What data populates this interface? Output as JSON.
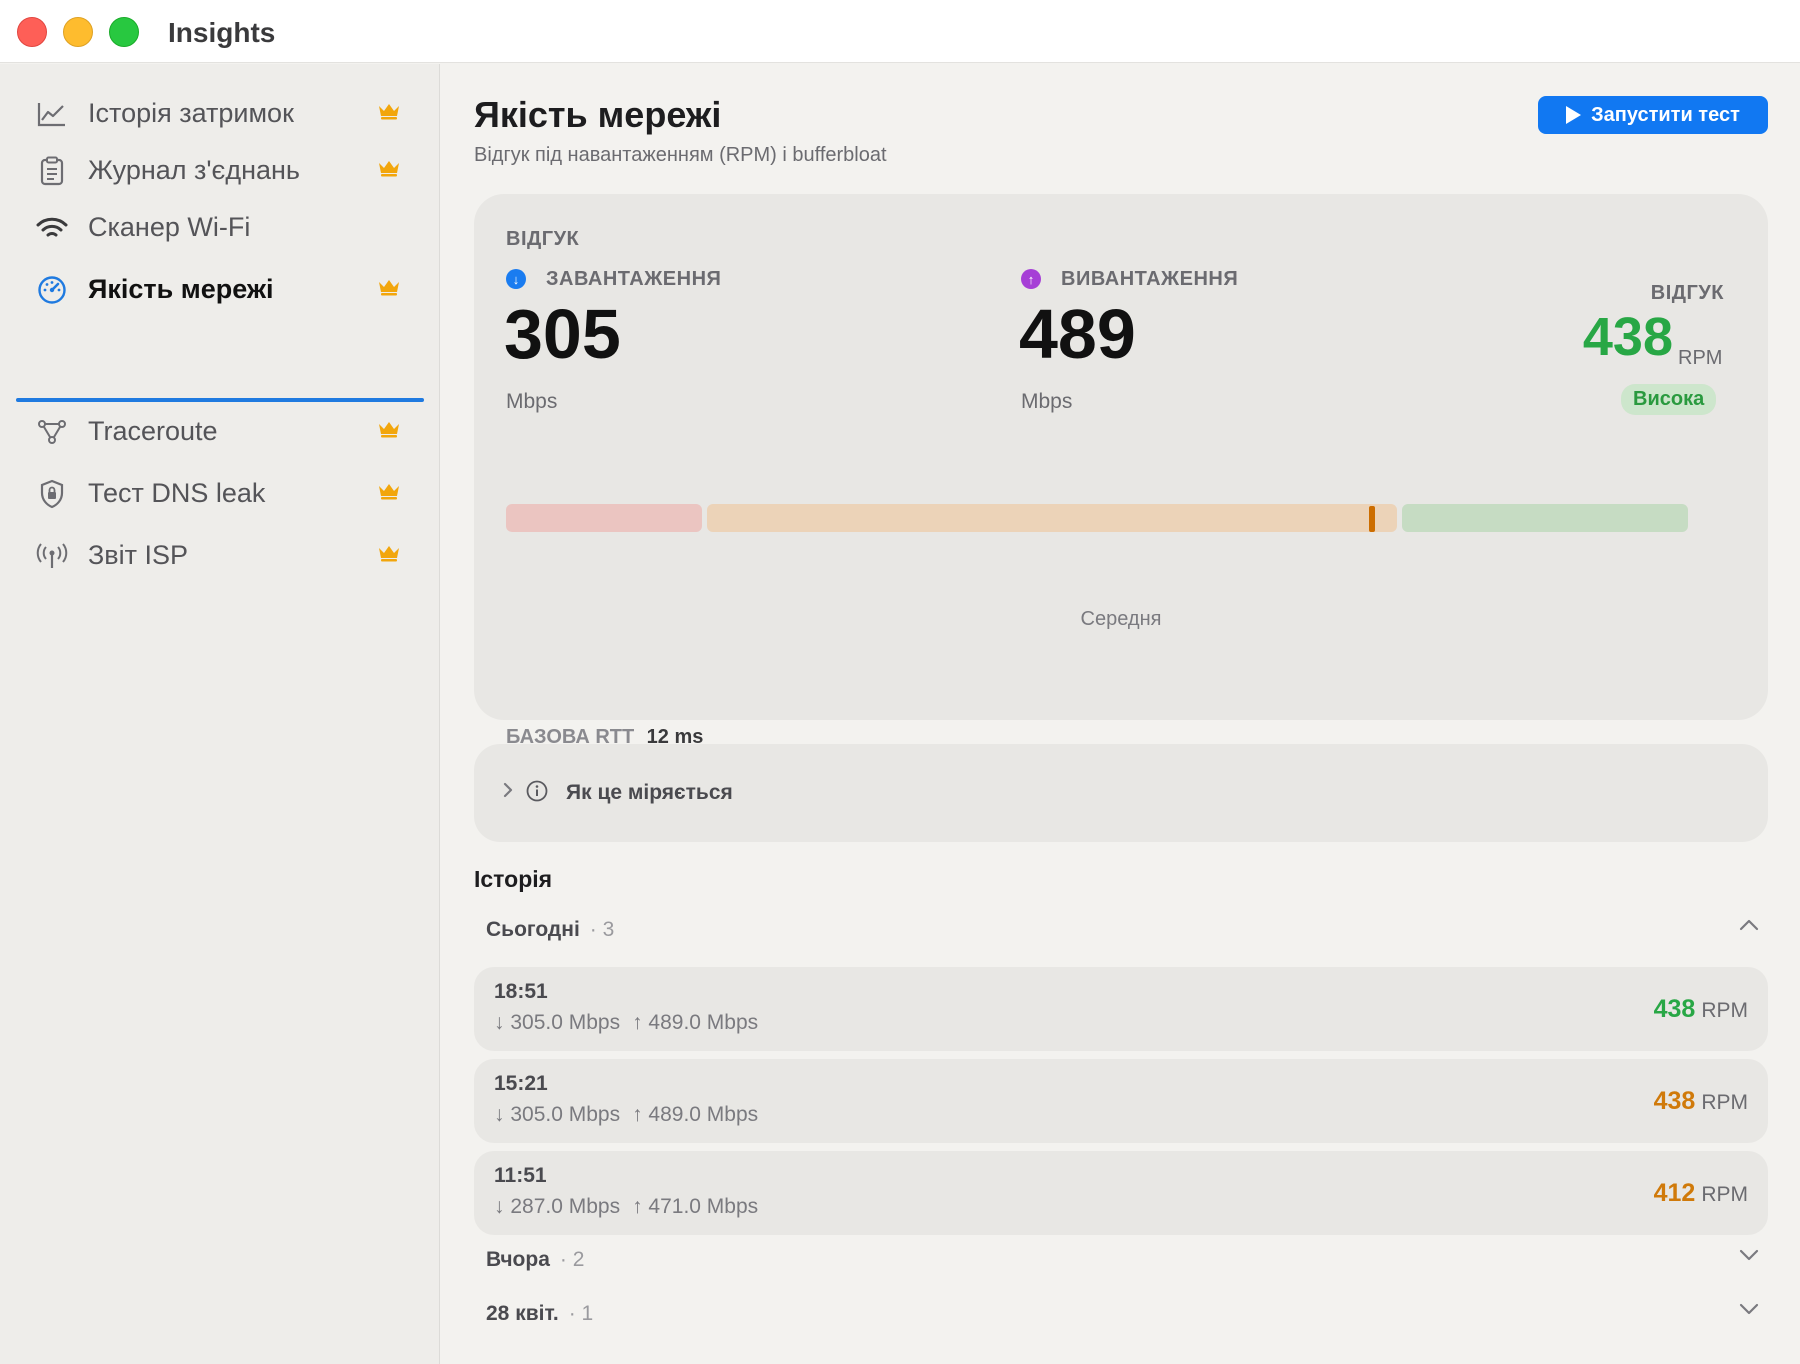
{
  "window": {
    "title": "Insights"
  },
  "sidebar": {
    "items": [
      {
        "label": "Історія затримок",
        "icon": "chart-line-icon",
        "premium": true,
        "active": false
      },
      {
        "label": "Журнал з'єднань",
        "icon": "clipboard-icon",
        "premium": true,
        "active": false
      },
      {
        "label": "Сканер Wi-Fi",
        "icon": "wifi-icon",
        "premium": false,
        "active": false
      },
      {
        "label": "Якість мережі",
        "icon": "gauge-icon",
        "premium": true,
        "active": true
      },
      {
        "label": "Traceroute",
        "icon": "route-icon",
        "premium": true,
        "active": false
      },
      {
        "label": "Тест DNS leak",
        "icon": "shield-icon",
        "premium": true,
        "active": false
      },
      {
        "label": "Звіт ISP",
        "icon": "antenna-icon",
        "premium": true,
        "active": false
      }
    ]
  },
  "header": {
    "title": "Якість мережі",
    "subtitle": "Відгук під навантаженням (RPM) і bufferbloat",
    "run_button": "Запустити тест"
  },
  "summary": {
    "section_label": "ВІДГУК",
    "download": {
      "label": "ЗАВАНТАЖЕННЯ",
      "value": "305",
      "unit": "Mbps",
      "color": "#1a7cf0"
    },
    "upload": {
      "label": "ВИВАНТАЖЕННЯ",
      "value": "489",
      "unit": "Mbps",
      "color": "#a63fd6"
    },
    "responsiveness": {
      "label": "ВІДГУК",
      "value": "438",
      "unit": "RPM",
      "badge": "Висока",
      "color": "#28a745"
    },
    "scale": {
      "segments": [
        {
          "name": "low",
          "color": "#ebc5c1"
        },
        {
          "name": "medium",
          "color": "#ecd3b8"
        },
        {
          "name": "high",
          "color": "#c6dcc3"
        }
      ],
      "marker_color": "#cc6d00",
      "marker_fraction": 0.73
    },
    "grade": "Середня",
    "base_rtt": {
      "label": "БАЗОВА RTT",
      "value": "12 ms"
    }
  },
  "how": {
    "label": "Як це міряється"
  },
  "history": {
    "title": "Історія",
    "groups": [
      {
        "name": "Сьогодні",
        "count": "· 3",
        "expanded": true,
        "rows": [
          {
            "time": "18:51",
            "down": "↓ 305.0 Mbps",
            "up": "↑ 489.0 Mbps",
            "rpm": "438",
            "rpm_unit": "RPM",
            "color": "#28a745"
          },
          {
            "time": "15:21",
            "down": "↓ 305.0 Mbps",
            "up": "↑ 489.0 Mbps",
            "rpm": "438",
            "rpm_unit": "RPM",
            "color": "#d07a0a"
          },
          {
            "time": "11:51",
            "down": "↓ 287.0 Mbps",
            "up": "↑ 471.0 Mbps",
            "rpm": "412",
            "rpm_unit": "RPM",
            "color": "#d07a0a"
          }
        ]
      },
      {
        "name": "Вчора",
        "count": "· 2",
        "expanded": false
      },
      {
        "name": "28 квіт.",
        "count": "· 1",
        "expanded": false
      }
    ]
  }
}
